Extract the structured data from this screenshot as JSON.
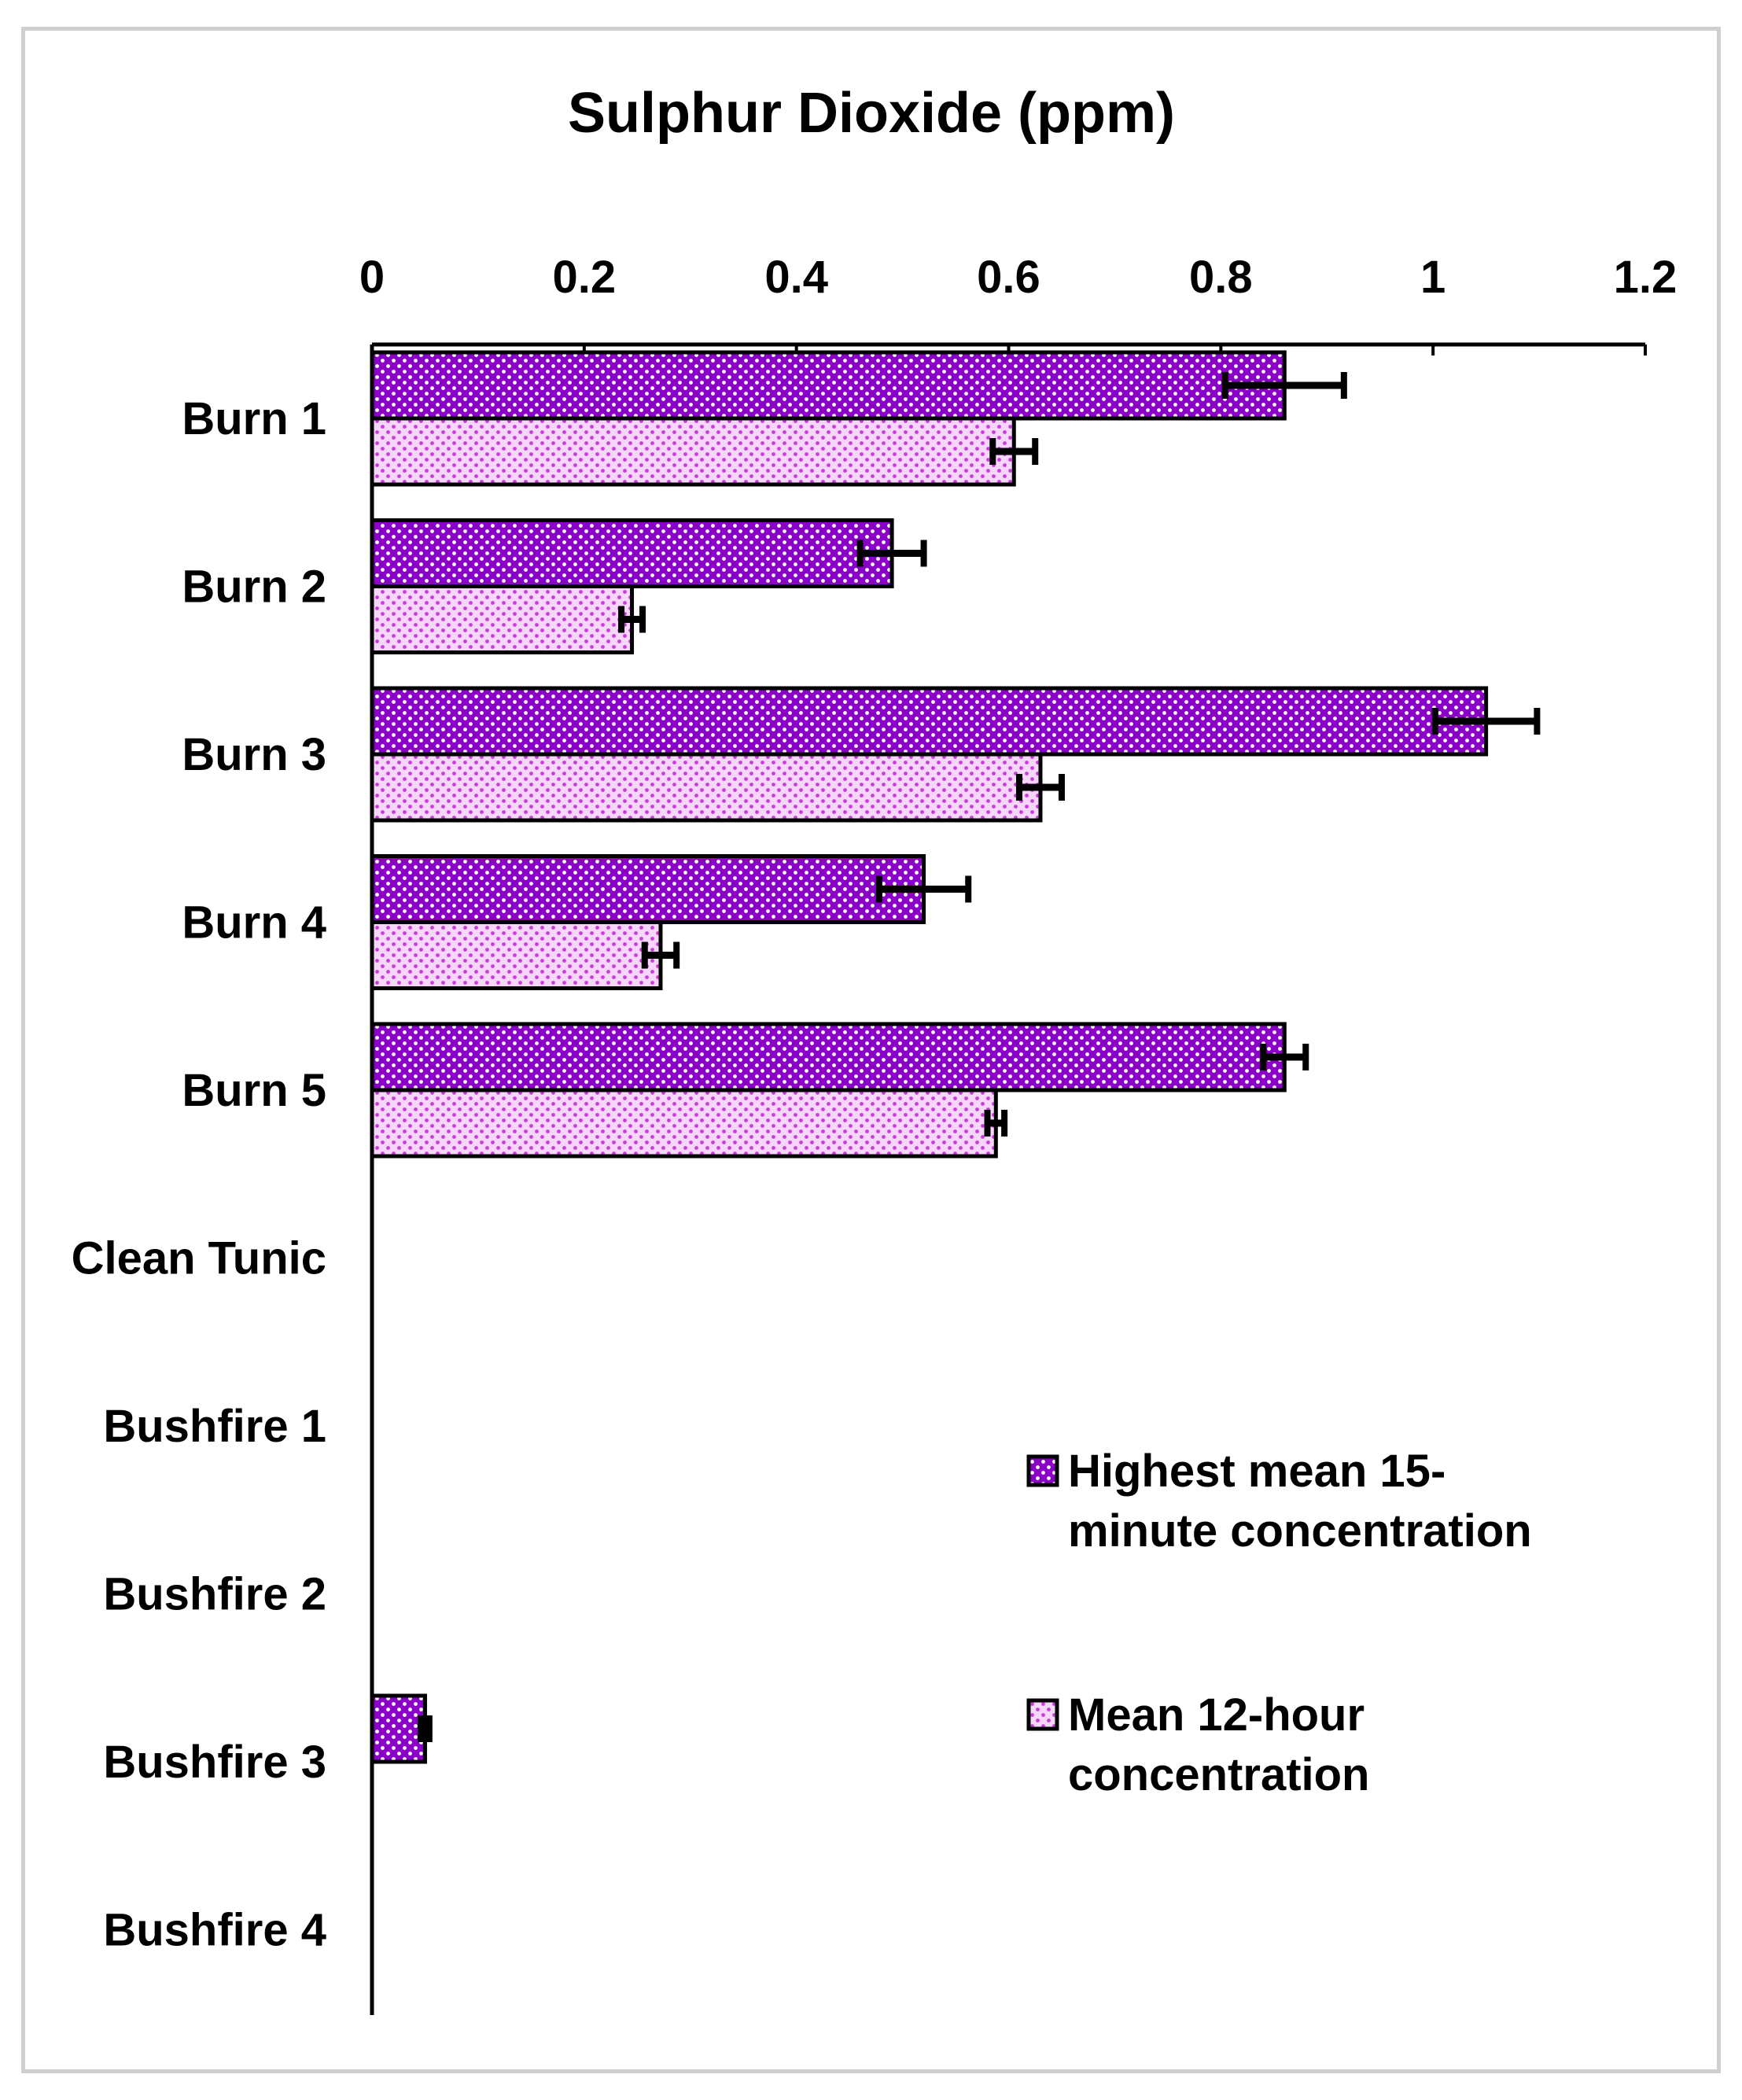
{
  "chart_data": {
    "type": "bar",
    "orientation": "horizontal",
    "title": "Sulphur Dioxide (ppm)",
    "xlabel": "",
    "ylabel": "",
    "xlim": [
      0,
      1.2
    ],
    "x_ticks": [
      "0",
      "0.2",
      "0.4",
      "0.6",
      "0.8",
      "1",
      "1.2"
    ],
    "x_axis_position": "top",
    "grid": false,
    "legend_position": "right",
    "categories": [
      "Burn 1",
      "Burn 2",
      "Burn 3",
      "Burn 4",
      "Burn 5",
      "Clean Tunic",
      "Bushfire 1",
      "Bushfire 2",
      "Bushfire 3",
      "Bushfire 4"
    ],
    "series": [
      {
        "name": "Highest mean 15-minute concentration",
        "legend_lines": [
          "Highest mean 15-",
          "minute concentration"
        ],
        "color": "#8b00c6",
        "dot_color": "#ffffff",
        "values": [
          0.86,
          0.49,
          1.05,
          0.52,
          0.86,
          0,
          0,
          0,
          0.05,
          0
        ],
        "errors": [
          0.056,
          0.03,
          0.048,
          0.042,
          0.02,
          0,
          0,
          0,
          0.004,
          0
        ]
      },
      {
        "name": "Mean 12-hour concentration",
        "legend_lines": [
          "Mean 12-hour",
          "concentration"
        ],
        "color": "#f7d6fb",
        "dot_color": "#c93edb",
        "values": [
          0.605,
          0.245,
          0.63,
          0.272,
          0.588,
          0,
          0,
          0,
          0,
          0
        ],
        "errors": [
          0.02,
          0.01,
          0.02,
          0.015,
          0.008,
          0,
          0,
          0,
          0,
          0
        ]
      }
    ]
  }
}
